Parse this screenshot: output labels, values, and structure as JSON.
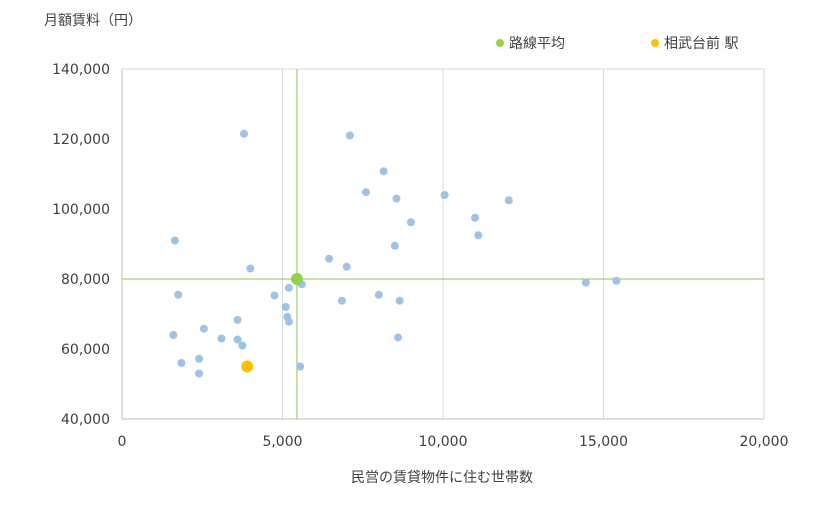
{
  "chart_data": {
    "type": "scatter",
    "title": "",
    "ylabel": "月額賃料（円）",
    "xlabel": "民営の賃貸物件に住む世帯数",
    "xlim": [
      0,
      20000
    ],
    "ylim": [
      40000,
      140000
    ],
    "x_ticks": [
      0,
      5000,
      10000,
      15000,
      20000
    ],
    "x_tick_labels": [
      "0",
      "5,000",
      "10,000",
      "15,000",
      "20,000"
    ],
    "y_ticks": [
      40000,
      60000,
      80000,
      100000,
      120000,
      140000
    ],
    "y_tick_labels": [
      "40,000",
      "60,000",
      "80,000",
      "100,000",
      "120,000",
      "140,000"
    ],
    "grid": "vertical",
    "legend_position": "top-right",
    "colors": {
      "points": "#9dc3e6",
      "average": "#92d050",
      "highlight": "#ffc000",
      "average_lines": "#92c353",
      "grid": "#d9d9d9",
      "axis": "#bfbfbf"
    },
    "series": [
      {
        "points": [
          [
            1650,
            91000
          ],
          [
            1750,
            75500
          ],
          [
            1600,
            64000
          ],
          [
            1850,
            56000
          ],
          [
            2400,
            57200
          ],
          [
            2400,
            53000
          ],
          [
            2550,
            65800
          ],
          [
            3100,
            63000
          ],
          [
            3600,
            68300
          ],
          [
            3600,
            62700
          ],
          [
            3750,
            61000
          ],
          [
            3800,
            121500
          ],
          [
            4000,
            83000
          ],
          [
            4750,
            75300
          ],
          [
            5100,
            72000
          ],
          [
            5150,
            69200
          ],
          [
            5200,
            77500
          ],
          [
            5200,
            67800
          ],
          [
            5550,
            55000
          ],
          [
            5600,
            78500
          ],
          [
            6450,
            85800
          ],
          [
            6850,
            73800
          ],
          [
            7000,
            83500
          ],
          [
            7100,
            121000
          ],
          [
            7600,
            104800
          ],
          [
            8000,
            75500
          ],
          [
            8150,
            110800
          ],
          [
            8500,
            89500
          ],
          [
            8550,
            103000
          ],
          [
            8600,
            63300
          ],
          [
            8650,
            73800
          ],
          [
            9000,
            96200
          ],
          [
            10050,
            104000
          ],
          [
            11000,
            97500
          ],
          [
            11100,
            92500
          ],
          [
            12050,
            102500
          ],
          [
            14450,
            79000
          ],
          [
            15400,
            79500
          ]
        ]
      },
      {
        "name": "路線平均",
        "points": [
          [
            5450,
            80000
          ]
        ]
      },
      {
        "name": "相武台前 駅",
        "points": [
          [
            3900,
            55000
          ]
        ]
      }
    ],
    "average_lines": {
      "x": 5450,
      "y": 80000
    }
  }
}
